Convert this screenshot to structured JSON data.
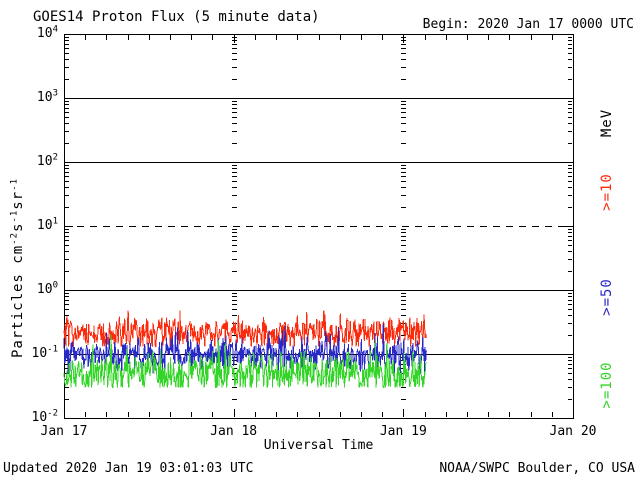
{
  "title": "GOES14 Proton Flux (5 minute data)",
  "begin_label": "Begin: 2020 Jan 17 0000 UTC",
  "footer": {
    "updated": "Updated 2020 Jan 19 03:01:03 UTC",
    "source": "NOAA/SWPC Boulder, CO USA"
  },
  "colors": {
    "background": "#ffffff",
    "axis": "#000000",
    "p10": "#fb2c0e",
    "p50": "#2929c8",
    "p100": "#35d42a"
  },
  "chart_data": {
    "type": "line",
    "title": "GOES14 Proton Flux (5 minute data)",
    "xlabel": "Universal Time",
    "ylabel_segments": [
      {
        "t": "Particles cm"
      },
      {
        "s": "-2"
      },
      {
        "t": "s"
      },
      {
        "s": "-1"
      },
      {
        "t": "sr"
      },
      {
        "s": "-1"
      }
    ],
    "y_scale": "log",
    "ylim_exp": [
      -2,
      4
    ],
    "y_tick_base": "10",
    "y_ticks_exp": [
      4,
      3,
      2,
      1,
      0,
      -1,
      -2
    ],
    "xlim_hours": [
      0,
      72
    ],
    "x_minor_tick_hours": 3,
    "x_ticks": [
      {
        "hour": 0,
        "label": "Jan 17"
      },
      {
        "hour": 24,
        "label": "Jan 18"
      },
      {
        "hour": 48,
        "label": "Jan 19"
      },
      {
        "hour": 72,
        "label": "Jan 20"
      }
    ],
    "gridlines": {
      "horizontal_solid_exps": [
        3,
        2,
        0,
        -1
      ],
      "horizontal_dashed_exps": [
        1
      ],
      "vertical_day_hours": [
        24,
        48
      ]
    },
    "legend": {
      "unit": "MeV",
      "entries": [
        {
          "label": ">=10",
          "color": "#fb2c0e"
        },
        {
          "label": ">=50",
          "color": "#2929c8"
        },
        {
          "label": ">=100",
          "color": "#35d42a"
        }
      ],
      "position": "right"
    },
    "series": [
      {
        "name": "Proton flux >=10 MeV",
        "label": ">=10",
        "color": "#fb2c0e",
        "seed": 101,
        "start_hour": 0,
        "end_hour": 51.25,
        "interval_minutes": 5,
        "baseline_flux": 0.22,
        "log_sigma": 0.13,
        "min_flux": 0.13,
        "max_flux": 0.48,
        "spike_probability": 0.0,
        "spike_factor": 1.5,
        "pattern": "quiet background noise, no proton event"
      },
      {
        "name": "Proton flux >=50 MeV",
        "label": ">=50",
        "color": "#2929c8",
        "seed": 202,
        "start_hour": 0,
        "end_hour": 51.25,
        "interval_minutes": 5,
        "baseline_flux": 0.095,
        "log_sigma": 0.14,
        "min_flux": 0.05,
        "max_flux": 0.3,
        "spike_probability": 0.015,
        "spike_factor": 2.4,
        "pattern": "quiet background noise, no proton event"
      },
      {
        "name": "Proton flux >=100 MeV",
        "label": ">=100",
        "color": "#35d42a",
        "seed": 303,
        "start_hour": 0,
        "end_hour": 51.25,
        "interval_minutes": 5,
        "baseline_flux": 0.048,
        "log_sigma": 0.16,
        "min_flux": 0.03,
        "max_flux": 0.25,
        "spike_probability": 0.02,
        "spike_factor": 3.2,
        "pattern": "quiet background noise, no proton event"
      }
    ]
  }
}
